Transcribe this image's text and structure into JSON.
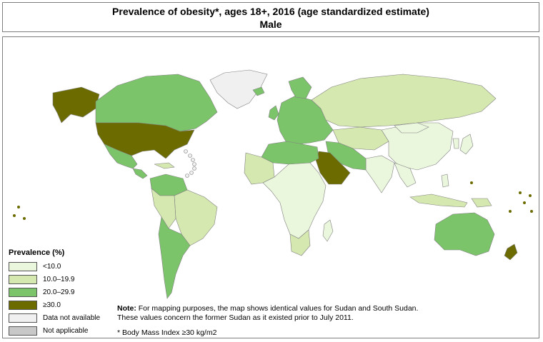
{
  "title": {
    "line1": "Prevalence of  obesity*, ages 18+, 2016 (age standardized estimate)",
    "line2": "Male"
  },
  "colors": {
    "ocean": "#ffffff",
    "border": "#808080",
    "lt10": "#eaf7dd",
    "10to19": "#d5e8b0",
    "20to29": "#7cc46a",
    "ge30": "#6b6b00",
    "not_available": "#f0f0f0",
    "not_applicable": "#c8c8c8"
  },
  "legend": {
    "title": "Prevalence (%)",
    "items": [
      {
        "label": "<10.0",
        "color": "#eaf7dd"
      },
      {
        "label": "10.0–19.9",
        "color": "#d5e8b0"
      },
      {
        "label": "20.0–29.9",
        "color": "#7cc46a"
      },
      {
        "label": "≥30.0",
        "color": "#6b6b00"
      },
      {
        "label": "Data not available",
        "color": "#f0f0f0"
      },
      {
        "label": "Not applicable",
        "color": "#c8c8c8"
      }
    ]
  },
  "note": {
    "label": "Note:",
    "text": " For mapping purposes, the map shows identical values for Sudan and South Sudan.",
    "text2": "These values concern the former Sudan as it existed prior to July 2011."
  },
  "footnote": "* Body Mass Index ≥30 kg/m2"
}
